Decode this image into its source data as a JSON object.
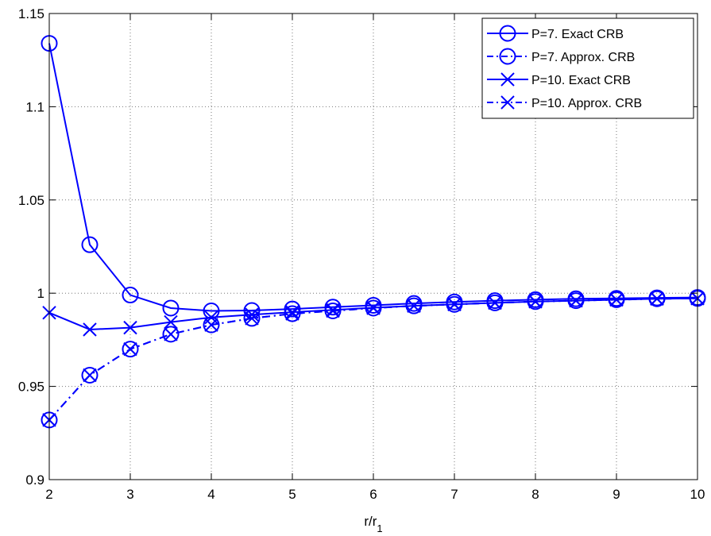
{
  "chart_data": {
    "type": "line",
    "xlabel": "r/r",
    "xlabel_subscript": "1",
    "xlim": [
      2,
      10
    ],
    "ylim": [
      0.9,
      1.15
    ],
    "xticks": [
      2,
      3,
      4,
      5,
      6,
      7,
      8,
      9,
      10
    ],
    "xtick_labels": [
      "2",
      "3",
      "4",
      "5",
      "6",
      "7",
      "8",
      "9",
      "10"
    ],
    "yticks": [
      0.9,
      0.95,
      1.0,
      1.05,
      1.1,
      1.15
    ],
    "ytick_labels": [
      "0.9",
      "0.95",
      "1",
      "1.05",
      "1.1",
      "1.15"
    ],
    "grid": true,
    "legend_position": "top-right",
    "color": "#0000ff",
    "x": [
      2,
      2.5,
      3,
      3.5,
      4,
      4.5,
      5,
      5.5,
      6,
      6.5,
      7,
      7.5,
      8,
      8.5,
      9,
      9.5,
      10
    ],
    "series": [
      {
        "name": "P=7. Exact CRB",
        "marker": "circle",
        "line": "solid",
        "values": [
          1.134,
          1.026,
          0.999,
          0.992,
          0.9905,
          0.9907,
          0.9915,
          0.9925,
          0.9935,
          0.9945,
          0.9953,
          0.996,
          0.9965,
          0.997,
          0.9972,
          0.9975,
          0.9977
        ]
      },
      {
        "name": "P=7. Approx. CRB",
        "marker": "circle",
        "line": "dashdot",
        "values": [
          0.932,
          0.956,
          0.97,
          0.978,
          0.983,
          0.9865,
          0.989,
          0.9905,
          0.992,
          0.9932,
          0.994,
          0.9948,
          0.9955,
          0.996,
          0.9965,
          0.997,
          0.9972
        ]
      },
      {
        "name": "P=10. Exact CRB",
        "marker": "x",
        "line": "solid",
        "values": [
          0.9895,
          0.9805,
          0.9815,
          0.9845,
          0.987,
          0.9885,
          0.9898,
          0.991,
          0.9922,
          0.9932,
          0.994,
          0.9948,
          0.9955,
          0.996,
          0.9965,
          0.997,
          0.9972
        ]
      },
      {
        "name": "P=10. Approx. CRB",
        "marker": "x",
        "line": "dashdot",
        "values": [
          0.932,
          0.956,
          0.97,
          0.978,
          0.983,
          0.9865,
          0.989,
          0.9905,
          0.992,
          0.9932,
          0.994,
          0.9948,
          0.9955,
          0.996,
          0.9965,
          0.997,
          0.9972
        ]
      }
    ]
  }
}
